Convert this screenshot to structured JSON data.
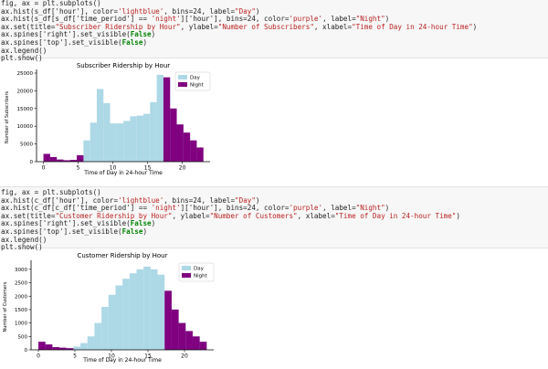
{
  "cells": [
    {
      "code": [
        [
          {
            "t": "fig, ax = plt.subplots()"
          }
        ],
        [
          {
            "t": "ax.hist(s_df['hour'], color="
          },
          {
            "t": "'lightblue'",
            "c": "str"
          },
          {
            "t": ", bins=24, label="
          },
          {
            "t": "\"Day\"",
            "c": "str"
          },
          {
            "t": ")"
          }
        ],
        [
          {
            "t": "ax.hist(s_df[s_df['time_period'] == "
          },
          {
            "t": "'night'",
            "c": "str"
          },
          {
            "t": "]['hour'], bins=24, color="
          },
          {
            "t": "'purple'",
            "c": "str"
          },
          {
            "t": ", label="
          },
          {
            "t": "\"Night\"",
            "c": "str"
          },
          {
            "t": ")"
          }
        ],
        [
          {
            "t": "ax.set(title="
          },
          {
            "t": "\"Subscriber Ridership by Hour\"",
            "c": "str"
          },
          {
            "t": ", ylabel="
          },
          {
            "t": "\"Number of Subscribers\"",
            "c": "str"
          },
          {
            "t": ", xlabel="
          },
          {
            "t": "\"Time of Day in 24-hour Time\"",
            "c": "str"
          },
          {
            "t": ")"
          }
        ],
        [
          {
            "t": "ax.spines['right'].set_visible("
          },
          {
            "t": "False",
            "c": "kw"
          },
          {
            "t": ")"
          }
        ],
        [
          {
            "t": "ax.spines['top'].set_visible("
          },
          {
            "t": "False",
            "c": "kw"
          },
          {
            "t": ")"
          }
        ],
        [
          {
            "t": "ax.legend()"
          }
        ],
        [
          {
            "t": "plt.show()"
          }
        ]
      ]
    },
    {
      "code": [
        [
          {
            "t": "fig, ax = plt.subplots()"
          }
        ],
        [
          {
            "t": "ax.hist(c_df['hour'], color="
          },
          {
            "t": "'lightblue'",
            "c": "str"
          },
          {
            "t": ", bins=24, label="
          },
          {
            "t": "\"Day\"",
            "c": "str"
          },
          {
            "t": ")"
          }
        ],
        [
          {
            "t": "ax.hist(c_df[c_df['time_period'] == "
          },
          {
            "t": "'night'",
            "c": "str"
          },
          {
            "t": "]['hour'], bins=24, color="
          },
          {
            "t": "'purple'",
            "c": "str"
          },
          {
            "t": ", label="
          },
          {
            "t": "\"Night\"",
            "c": "str"
          },
          {
            "t": ")"
          }
        ],
        [
          {
            "t": "ax.set(title="
          },
          {
            "t": "\"Customer Ridership by Hour\"",
            "c": "str"
          },
          {
            "t": ", ylabel="
          },
          {
            "t": "\"Number of Customers\"",
            "c": "str"
          },
          {
            "t": ", xlabel="
          },
          {
            "t": "\"Time of Day in 24-hour Time\"",
            "c": "str"
          },
          {
            "t": ")"
          }
        ],
        [
          {
            "t": "ax.spines['right'].set_visible("
          },
          {
            "t": "False",
            "c": "kw"
          },
          {
            "t": ")"
          }
        ],
        [
          {
            "t": "ax.spines['top'].set_visible("
          },
          {
            "t": "False",
            "c": "kw"
          },
          {
            "t": ")"
          }
        ],
        [
          {
            "t": "ax.legend()"
          }
        ],
        [
          {
            "t": "plt.show()"
          }
        ]
      ]
    }
  ],
  "colors": {
    "day": "#add8e6",
    "night": "#800080"
  },
  "chart_data": [
    {
      "type": "bar",
      "title": "Subscriber Ridership by Hour",
      "xlabel": "Time of Day in 24-hour Time",
      "ylabel": "Number of Subscribers",
      "xlim": [
        -1,
        24
      ],
      "ylim": [
        0,
        25000
      ],
      "xticks": [
        0,
        5,
        10,
        15,
        20
      ],
      "yticks": [
        0,
        5000,
        10000,
        15000,
        20000,
        25000
      ],
      "ytick_labels": [
        "0",
        "5000",
        "10000",
        "15000",
        "20000",
        "25000"
      ],
      "legend": [
        "Day",
        "Night"
      ],
      "legend_position": "top-right",
      "series": [
        {
          "name": "Day",
          "bin_start": 0,
          "bin_width": 0.96,
          "values": [
            2200,
            1300,
            600,
            400,
            500,
            1800,
            6000,
            11000,
            20500,
            16500,
            10800,
            10800,
            11500,
            12800,
            13000,
            13500,
            16800,
            24500,
            23500,
            15000,
            10500,
            8200,
            6000,
            4000
          ]
        },
        {
          "name": "Night",
          "bin_start": 0,
          "bin_width": 0.96,
          "values": [
            2200,
            1300,
            600,
            400,
            500,
            1800,
            0,
            0,
            0,
            0,
            0,
            0,
            0,
            0,
            0,
            0,
            0,
            0,
            23800,
            15000,
            10500,
            8200,
            6000,
            4000
          ]
        }
      ]
    },
    {
      "type": "bar",
      "title": "Customer Ridership by Hour",
      "xlabel": "Time of Day in 24-hour Time",
      "ylabel": "Number of Customers",
      "xlim": [
        -1,
        24
      ],
      "ylim": [
        0,
        3200
      ],
      "xticks": [
        0,
        5,
        10,
        15,
        20
      ],
      "yticks": [
        0,
        500,
        1000,
        1500,
        2000,
        2500,
        3000
      ],
      "ytick_labels": [
        "0",
        "500",
        "1000",
        "1500",
        "2000",
        "2500",
        "3000"
      ],
      "legend": [
        "Day",
        "Night"
      ],
      "legend_position": "top-right",
      "series": [
        {
          "name": "Day",
          "bin_start": 0,
          "bin_width": 0.96,
          "values": [
            300,
            200,
            100,
            80,
            60,
            120,
            250,
            500,
            1000,
            1600,
            2050,
            2400,
            2650,
            2850,
            3000,
            3100,
            3000,
            2800,
            2200,
            1500,
            1000,
            700,
            500,
            300
          ]
        },
        {
          "name": "Night",
          "bin_start": 0,
          "bin_width": 0.96,
          "values": [
            300,
            200,
            100,
            80,
            60,
            0,
            0,
            0,
            0,
            0,
            0,
            0,
            0,
            0,
            0,
            0,
            0,
            0,
            2200,
            1500,
            1000,
            700,
            500,
            300
          ]
        }
      ]
    }
  ]
}
